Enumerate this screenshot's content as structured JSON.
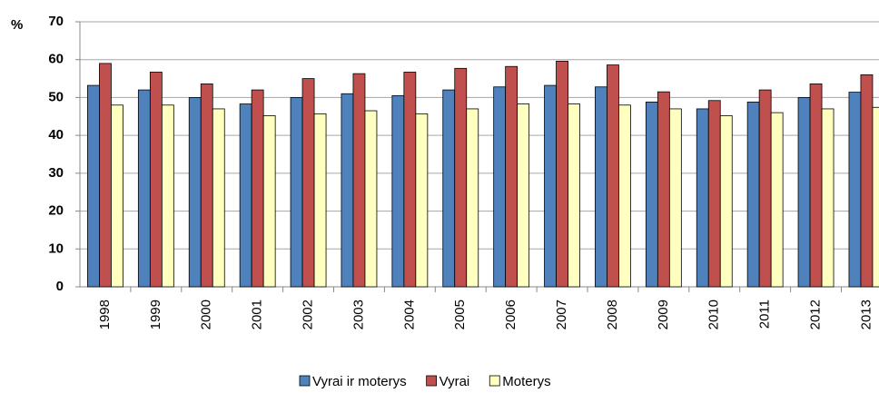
{
  "chart_data": {
    "type": "bar",
    "y_label": "%",
    "categories": [
      "1998",
      "1999",
      "2000",
      "2001",
      "2002",
      "2003",
      "2004",
      "2005",
      "2006",
      "2007",
      "2008",
      "2009",
      "2010",
      "2011",
      "2012",
      "2013"
    ],
    "series": [
      {
        "name": "Vyrai ir moterys",
        "color": "#4f81bd",
        "values": [
          53.2,
          52,
          50,
          48.3,
          50,
          51,
          50.5,
          52,
          52.8,
          53.2,
          52.8,
          48.8,
          47,
          48.8,
          50,
          51.4
        ]
      },
      {
        "name": "Vyrai",
        "color": "#c0504d",
        "values": [
          59,
          56.7,
          53.6,
          52,
          55,
          56.3,
          56.7,
          57.7,
          58.2,
          59.6,
          58.6,
          51.5,
          49.2,
          52,
          53.6,
          56
        ]
      },
      {
        "name": "Moterys",
        "color": "#ffffc0",
        "values": [
          48,
          48,
          47,
          45.2,
          45.7,
          46.5,
          45.7,
          47,
          48.3,
          48.3,
          48,
          47,
          45.2,
          46,
          47,
          47.4
        ]
      }
    ],
    "ylim": [
      0,
      70
    ],
    "yticks": [
      0,
      10,
      20,
      30,
      40,
      50,
      60,
      70
    ],
    "grid": true,
    "legend": "bottom"
  }
}
